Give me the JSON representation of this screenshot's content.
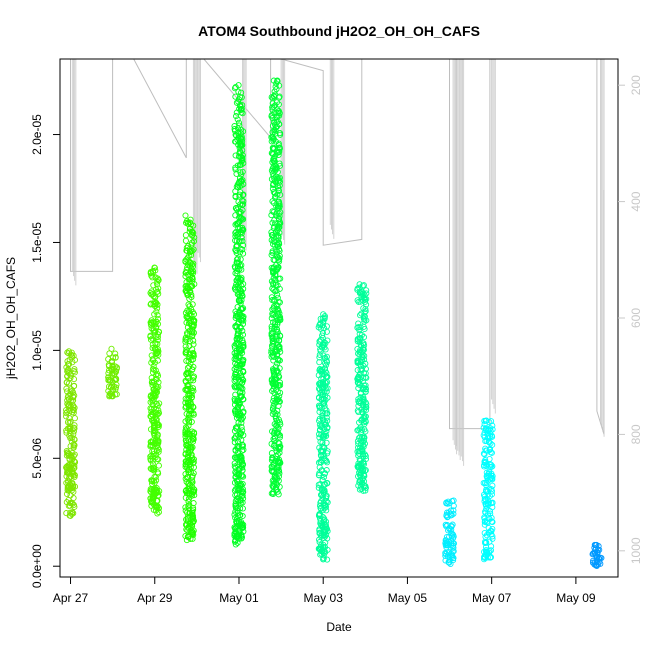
{
  "chart_data": {
    "type": "scatter",
    "title": "ATOM4 Southbound jH2O2_OH_OH_CAFS",
    "xlabel": "Date",
    "ylabel": "jH2O2_OH_OH_CAFS",
    "x_ticks": [
      "Apr 27",
      "Apr 29",
      "May 01",
      "May 03",
      "May 05",
      "May 07",
      "May 09"
    ],
    "y_ticks": [
      "0.0e+00",
      "5.0e-06",
      "1.0e-05",
      "1.5e-05",
      "2.0e-05"
    ],
    "y_tick_values": [
      0,
      5e-06,
      1e-05,
      1.5e-05,
      2e-05
    ],
    "y_right_ticks": [
      "200",
      "400",
      "600",
      "800",
      "1000"
    ],
    "y_right_tick_values": [
      200,
      400,
      600,
      800,
      1000
    ],
    "xlim": [
      "Apr 26 18:00",
      "May 10 00:00"
    ],
    "ylim": [
      -5e-07,
      2.35e-05
    ],
    "y_right_lim": [
      1045,
      155
    ],
    "point_style": "open circle",
    "color_scale": [
      "#80ff00",
      "#00ff00",
      "#00ff80",
      "#00ffff",
      "#0080ff"
    ],
    "clusters": [
      {
        "date": "Apr 27 00:00",
        "y_min": 2.3e-06,
        "y_max": 1.01e-05,
        "color": "#7fe600"
      },
      {
        "date": "Apr 28 00:00",
        "y_min": 7.8e-06,
        "y_max": 1.01e-05,
        "color": "#70ee00"
      },
      {
        "date": "Apr 29 00:00",
        "y_min": 2.4e-06,
        "y_max": 1.39e-05,
        "color": "#44ff00"
      },
      {
        "date": "Apr 29 20:00",
        "y_min": 1.2e-06,
        "y_max": 1.64e-05,
        "color": "#22ff00"
      },
      {
        "date": "May 01 00:00",
        "y_min": 1e-06,
        "y_max": 2.23e-05,
        "color": "#00ff22"
      },
      {
        "date": "May 01 21:00",
        "y_min": 3.3e-06,
        "y_max": 2.26e-05,
        "color": "#00ff33"
      },
      {
        "date": "May 03 00:00",
        "y_min": 3e-07,
        "y_max": 1.17e-05,
        "color": "#00ff99"
      },
      {
        "date": "May 03 22:00",
        "y_min": 3.4e-06,
        "y_max": 1.32e-05,
        "color": "#00ff99"
      },
      {
        "date": "May 06 00:00",
        "y_min": 0.0,
        "y_max": 3.1e-06,
        "color": "#00eeff"
      },
      {
        "date": "May 06 22:00",
        "y_min": 3e-07,
        "y_max": 6.8e-06,
        "color": "#00ffff"
      },
      {
        "date": "May 09 12:00",
        "y_min": 0.0,
        "y_max": 1e-06,
        "color": "#0099ff"
      }
    ],
    "altitude_line": [
      [
        "Apr 27 00:00",
        155
      ],
      [
        "Apr 27 00:00",
        520
      ],
      [
        "Apr 28 00:00",
        520
      ],
      [
        "Apr 28 00:00",
        155
      ],
      [
        "Apr 28 12:00",
        155
      ],
      [
        "Apr 29 18:00",
        325
      ],
      [
        "Apr 29 18:00",
        155
      ],
      [
        "Apr 30 00:00",
        155
      ],
      [
        "Apr 30 04:00",
        155
      ],
      [
        "May 01 18:00",
        290
      ],
      [
        "May 01 18:00",
        155
      ],
      [
        "May 02 00:00",
        155
      ],
      [
        "May 03 00:00",
        175
      ],
      [
        "May 03 00:00",
        475
      ],
      [
        "May 03 22:00",
        465
      ],
      [
        "May 03 22:00",
        155
      ],
      [
        "May 06 00:00",
        155
      ],
      [
        "May 06 00:00",
        790
      ],
      [
        "May 06 23:00",
        790
      ],
      [
        "May 06 23:00",
        155
      ],
      [
        "May 09 12:00",
        155
      ],
      [
        "May 09 12:00",
        760
      ],
      [
        "May 09 16:00",
        800
      ],
      [
        "May 09 16:00",
        380
      ]
    ],
    "altitude_spikes": [
      {
        "date": "Apr 27 01:00",
        "y_top": 155,
        "y_bottom": 520
      },
      {
        "date": "Apr 29 22:00",
        "y_top": 155,
        "y_bottom": 500
      },
      {
        "date": "Apr 30 00:00",
        "y_top": 155,
        "y_bottom": 480
      },
      {
        "date": "May 01 02:00",
        "y_top": 155,
        "y_bottom": 460
      },
      {
        "date": "May 02 00:00",
        "y_top": 155,
        "y_bottom": 450
      },
      {
        "date": "May 03 04:00",
        "y_top": 155,
        "y_bottom": 440
      },
      {
        "date": "May 06 02:00",
        "y_top": 155,
        "y_bottom": 810
      },
      {
        "date": "May 06 04:00",
        "y_top": 155,
        "y_bottom": 820
      },
      {
        "date": "May 06 06:00",
        "y_top": 155,
        "y_bottom": 830
      },
      {
        "date": "May 07 00:00",
        "y_top": 155,
        "y_bottom": 740
      },
      {
        "date": "May 09 14:00",
        "y_top": 155,
        "y_bottom": 780
      }
    ]
  }
}
